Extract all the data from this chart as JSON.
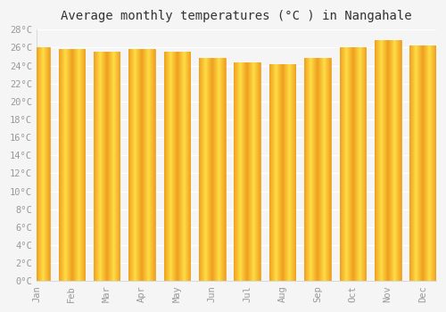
{
  "months": [
    "Jan",
    "Feb",
    "Mar",
    "Apr",
    "May",
    "Jun",
    "Jul",
    "Aug",
    "Sep",
    "Oct",
    "Nov",
    "Dec"
  ],
  "temperatures": [
    26.0,
    25.8,
    25.5,
    25.8,
    25.5,
    24.8,
    24.3,
    24.1,
    24.8,
    26.0,
    26.8,
    26.2
  ],
  "bar_color_center": "#FFDD44",
  "bar_color_edge": "#F0A020",
  "title": "Average monthly temperatures (°C ) in Nangahale",
  "ylim": [
    0,
    28
  ],
  "ytick_step": 2,
  "background_color": "#f5f5f5",
  "plot_bg_color": "#f5f5f5",
  "grid_color": "#ffffff",
  "title_fontsize": 10,
  "tick_fontsize": 7.5,
  "tick_color": "#999999"
}
